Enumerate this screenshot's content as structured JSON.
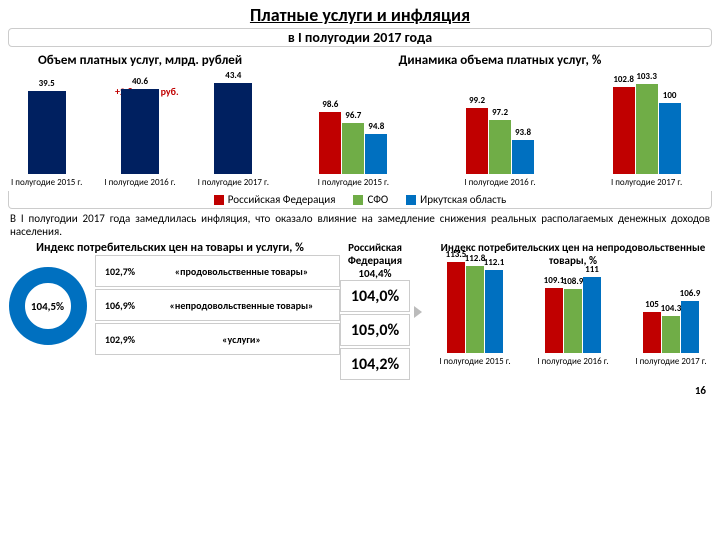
{
  "title": "Платные услуги и инфляция",
  "subtitle": "в I полугодии 2017 года",
  "colors": {
    "rf": "#c00000",
    "sfo": "#70ad47",
    "irk": "#0070c0",
    "single_bar": "#002060"
  },
  "chart1": {
    "title": "Объем платных услуг, млрд. рублей",
    "annotation": "+2,8 млрд руб.",
    "categories": [
      "I полугодие 2015 г.",
      "I полугодие 2016 г.",
      "I полугодие 2017 г."
    ],
    "values": [
      39.5,
      40.6,
      43.4
    ],
    "max": 50
  },
  "chart2": {
    "title": "Динамика объема платных услуг, %",
    "categories": [
      "I полугодие 2015 г.",
      "I полугодие 2016 г.",
      "I полугодие 2017 г."
    ],
    "series": [
      {
        "name": "rf",
        "vals": [
          98.6,
          99.2,
          102.8
        ]
      },
      {
        "name": "sfo",
        "vals": [
          96.7,
          97.2,
          103.3
        ]
      },
      {
        "name": "irk",
        "vals": [
          94.8,
          93.8,
          100.0
        ]
      }
    ],
    "min": 88,
    "max": 105
  },
  "legend": [
    {
      "label": "Российская Федерация",
      "color": "#c00000"
    },
    {
      "label": "СФО",
      "color": "#70ad47"
    },
    {
      "label": "Иркутская область",
      "color": "#0070c0"
    }
  ],
  "paragraph": "В I полугодии 2017 года замедлилась инфляция, что оказало влияние на замедление снижения реальных располагаемых денежных доходов населения.",
  "cpi": {
    "title_left": "Индекс потребительских цен на товары и услуги, %",
    "donut": "104,5%",
    "rus_header": "Российская Федерация 104,4%",
    "rows": [
      {
        "pct": "102,7%",
        "name": "«продовольственные товары»",
        "rus": "104,0%"
      },
      {
        "pct": "106,9%",
        "name": "«непродовольственные товары»",
        "rus": "105,0%"
      },
      {
        "pct": "102,9%",
        "name": "«услуги»",
        "rus": "104,2%"
      }
    ]
  },
  "chart3": {
    "title": "Индекс потребительских цен на непродовольственные товары, %",
    "categories": [
      "I полугодие 2015 г.",
      "I полугодие 2016 г.",
      "I полугодие 2017 г."
    ],
    "series": [
      {
        "name": "rf",
        "vals": [
          113.5,
          109.1,
          105.0
        ]
      },
      {
        "name": "sfo",
        "vals": [
          112.8,
          108.9,
          104.3
        ]
      },
      {
        "name": "irk",
        "vals": [
          112.1,
          111.0,
          106.9
        ]
      }
    ],
    "min": 98,
    "max": 115
  },
  "page_number": "16"
}
